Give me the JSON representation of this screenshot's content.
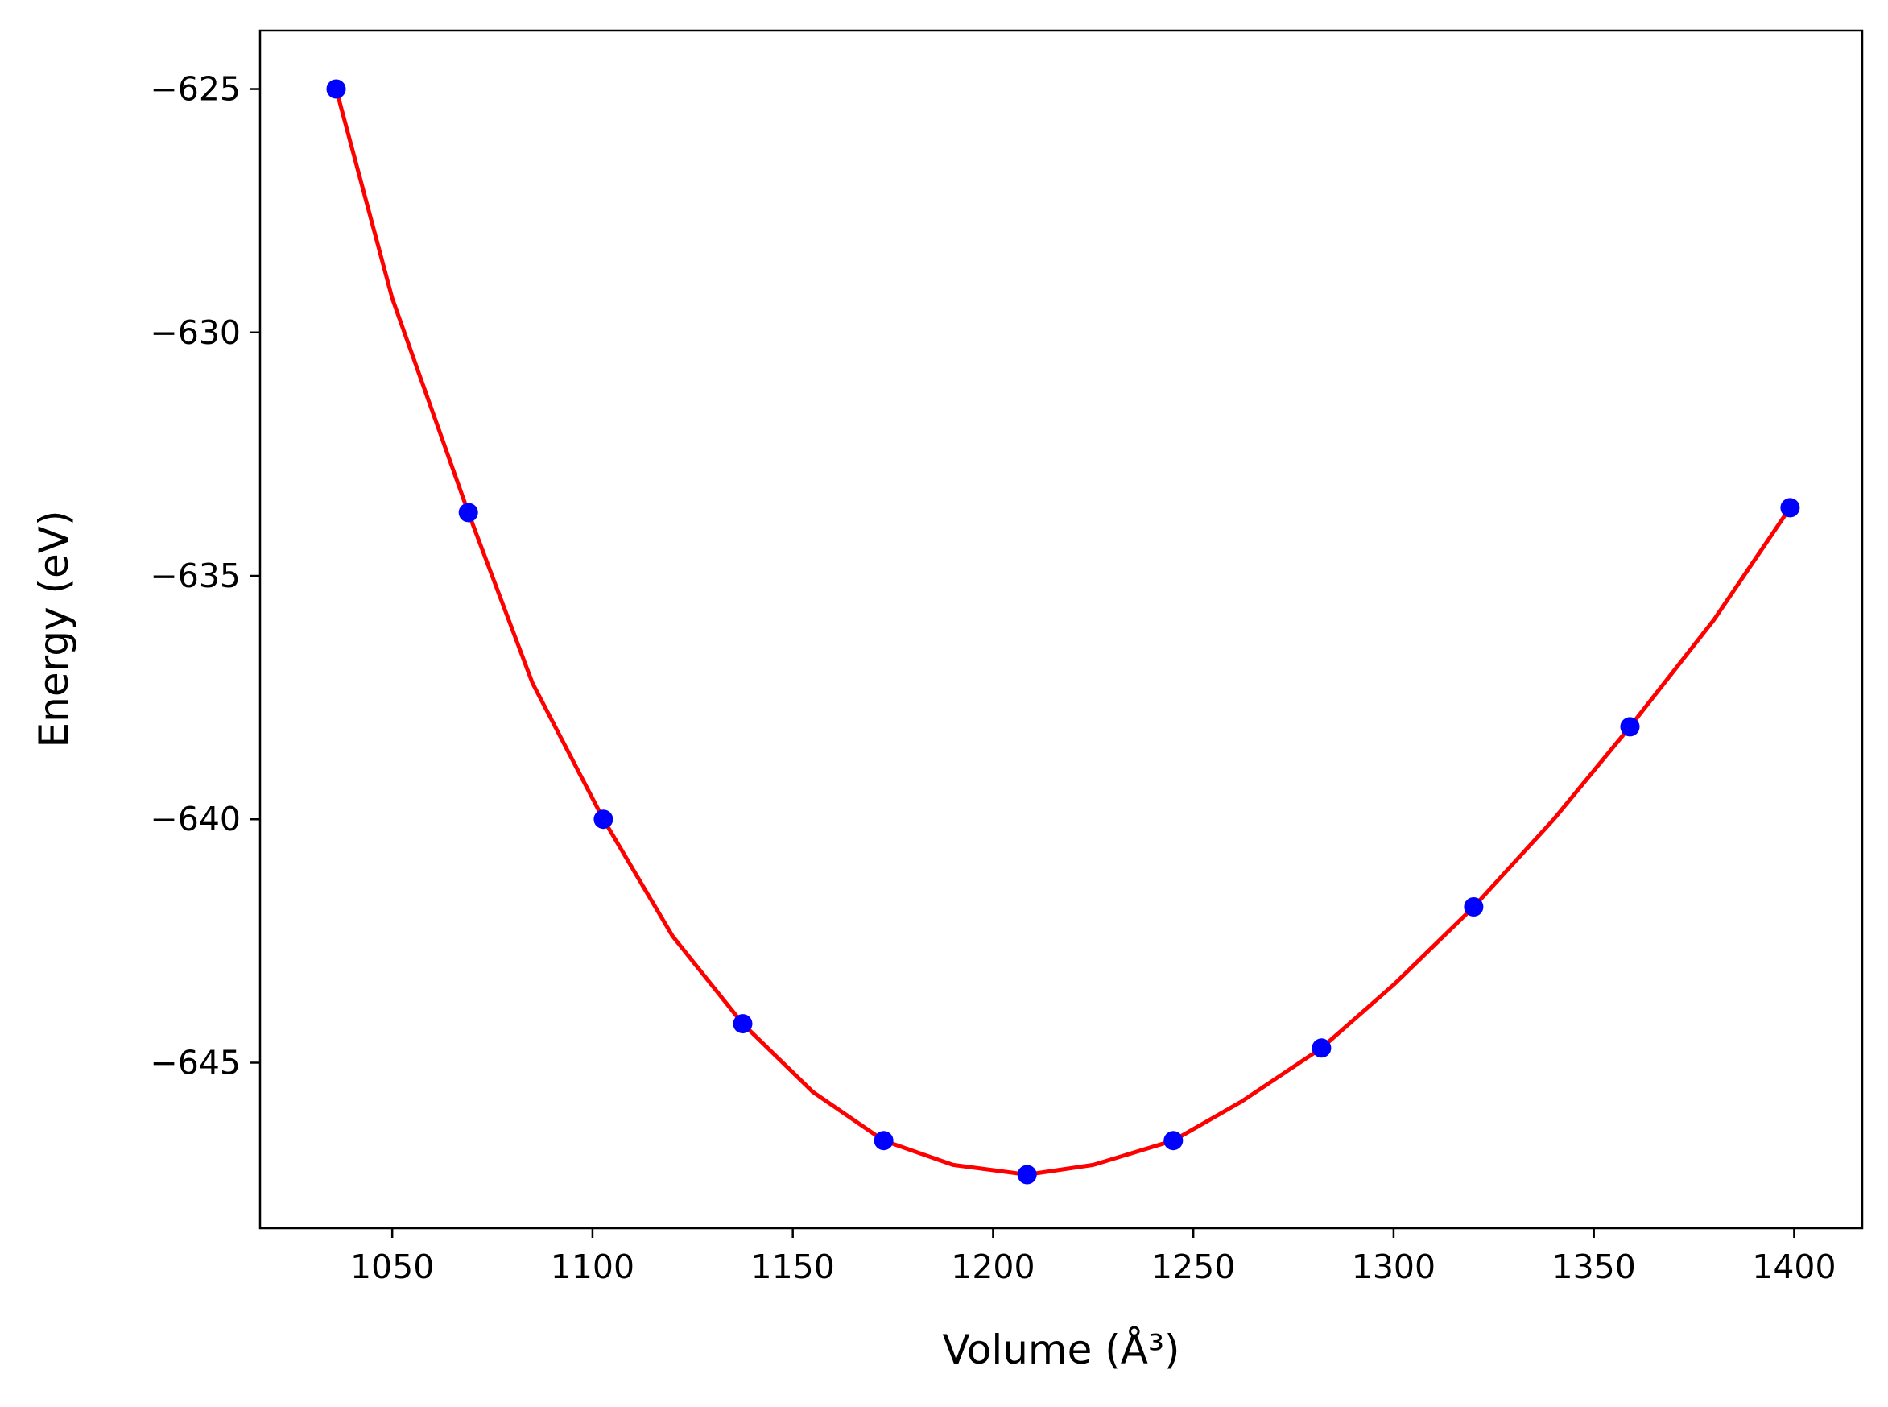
{
  "chart_data": {
    "type": "scatter",
    "title": "",
    "xlabel": "Volume (Å³)",
    "ylabel": "Energy (eV)",
    "xlim": [
      1017,
      1417
    ],
    "ylim": [
      -648.4,
      -623.8
    ],
    "xticks": [
      1050,
      1100,
      1150,
      1200,
      1250,
      1300,
      1350,
      1400
    ],
    "xtick_labels": [
      "1050",
      "1100",
      "1150",
      "1200",
      "1250",
      "1300",
      "1350",
      "1400"
    ],
    "yticks": [
      -625,
      -630,
      -635,
      -640,
      -645
    ],
    "ytick_labels": [
      "−625",
      "−630",
      "−635",
      "−640",
      "−645"
    ],
    "grid": false,
    "legend": "none",
    "series": [
      {
        "type": "scatter",
        "color": "#0000ff",
        "marker": "circle",
        "x": [
          1036.0,
          1069.0,
          1102.7,
          1137.5,
          1172.7,
          1208.5,
          1245.0,
          1282.0,
          1320.0,
          1359.0,
          1399.0
        ],
        "y": [
          -625.0,
          -633.7,
          -640.0,
          -644.2,
          -646.6,
          -647.3,
          -646.6,
          -644.7,
          -641.8,
          -638.1,
          -633.6
        ]
      },
      {
        "type": "line",
        "color": "#ff0000",
        "x": [
          1036.0,
          1050.0,
          1069.0,
          1085.0,
          1102.7,
          1120.0,
          1137.5,
          1155.0,
          1172.7,
          1190.0,
          1208.5,
          1225.0,
          1245.0,
          1262.0,
          1282.0,
          1300.0,
          1320.0,
          1340.0,
          1359.0,
          1380.0,
          1399.0
        ],
        "y": [
          -625.0,
          -629.3,
          -633.7,
          -637.2,
          -640.0,
          -642.4,
          -644.2,
          -645.6,
          -646.6,
          -647.1,
          -647.3,
          -647.1,
          -646.6,
          -645.8,
          -644.7,
          -643.4,
          -641.8,
          -640.0,
          -638.1,
          -635.9,
          -633.6
        ]
      }
    ]
  }
}
